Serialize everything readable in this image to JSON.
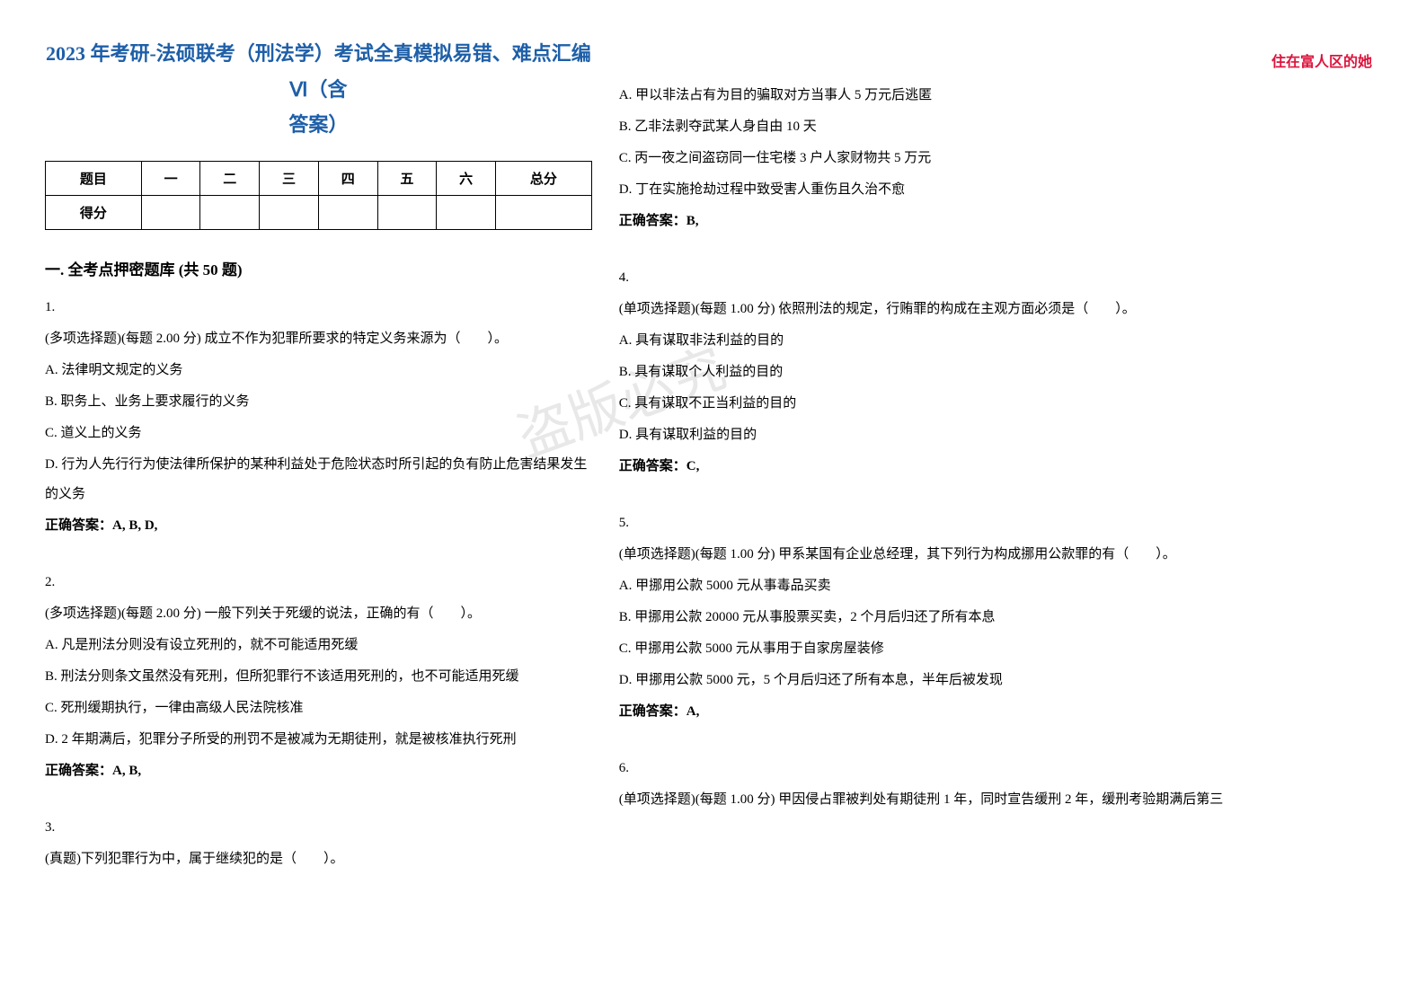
{
  "header_right": "住在富人区的她",
  "watermark": "盗版必究",
  "title_line1": "2023 年考研-法硕联考（刑法学）考试全真模拟易错、难点汇编Ⅵ（含",
  "title_line2": "答案）",
  "score_table": {
    "headers": [
      "题目",
      "一",
      "二",
      "三",
      "四",
      "五",
      "六",
      "总分"
    ],
    "row_label": "得分"
  },
  "section_title": "一. 全考点押密题库 (共 50 题)",
  "colors": {
    "header_red": "#dc143c",
    "title_blue": "#1e5fa8",
    "watermark_gray": "#e8e8e8",
    "text": "#000000",
    "border": "#000000"
  },
  "questions_left": [
    {
      "num": "1.",
      "stem": "(多项选择题)(每题 2.00 分) 成立不作为犯罪所要求的特定义务来源为（　　）。",
      "options": [
        "A. 法律明文规定的义务",
        "B. 职务上、业务上要求履行的义务",
        "C. 道义上的义务",
        "D. 行为人先行行为使法律所保护的某种利益处于危险状态时所引起的负有防止危害结果发生的义务"
      ],
      "answer": "正确答案：A, B, D,"
    },
    {
      "num": "2.",
      "stem": "(多项选择题)(每题 2.00 分) 一般下列关于死缓的说法，正确的有（　　）。",
      "options": [
        "A. 凡是刑法分则没有设立死刑的，就不可能适用死缓",
        "B. 刑法分则条文虽然没有死刑，但所犯罪行不该适用死刑的，也不可能适用死缓",
        "C. 死刑缓期执行，一律由高级人民法院核准",
        "D. 2 年期满后，犯罪分子所受的刑罚不是被减为无期徒刑，就是被核准执行死刑"
      ],
      "answer": "正确答案：A, B,"
    },
    {
      "num": "3.",
      "stem": "(真题)下列犯罪行为中，属于继续犯的是（　　）。",
      "options": [],
      "answer": ""
    }
  ],
  "questions_right": [
    {
      "num": "",
      "stem": "",
      "options": [
        "A. 甲以非法占有为目的骗取对方当事人 5 万元后逃匿",
        "B. 乙非法剥夺武某人身自由 10 天",
        "C. 丙一夜之间盗窃同一住宅楼 3 户人家财物共 5 万元",
        "D. 丁在实施抢劫过程中致受害人重伤且久治不愈"
      ],
      "answer": "正确答案：B,"
    },
    {
      "num": "4.",
      "stem": "(单项选择题)(每题 1.00 分) 依照刑法的规定，行贿罪的构成在主观方面必须是（　　）。",
      "options": [
        "A. 具有谋取非法利益的目的",
        "B. 具有谋取个人利益的目的",
        "C. 具有谋取不正当利益的目的",
        "D. 具有谋取利益的目的"
      ],
      "answer": "正确答案：C,"
    },
    {
      "num": "5.",
      "stem": "(单项选择题)(每题 1.00 分) 甲系某国有企业总经理，其下列行为构成挪用公款罪的有（　　）。",
      "options": [
        "A. 甲挪用公款 5000 元从事毒品买卖",
        "B. 甲挪用公款 20000 元从事股票买卖，2 个月后归还了所有本息",
        "C. 甲挪用公款 5000 元从事用于自家房屋装修",
        "D. 甲挪用公款 5000 元，5 个月后归还了所有本息，半年后被发现"
      ],
      "answer": "正确答案：A,"
    },
    {
      "num": "6.",
      "stem": "(单项选择题)(每题 1.00 分) 甲因侵占罪被判处有期徒刑 1 年，同时宣告缓刑 2 年，缓刑考验期满后第三",
      "options": [],
      "answer": ""
    }
  ]
}
